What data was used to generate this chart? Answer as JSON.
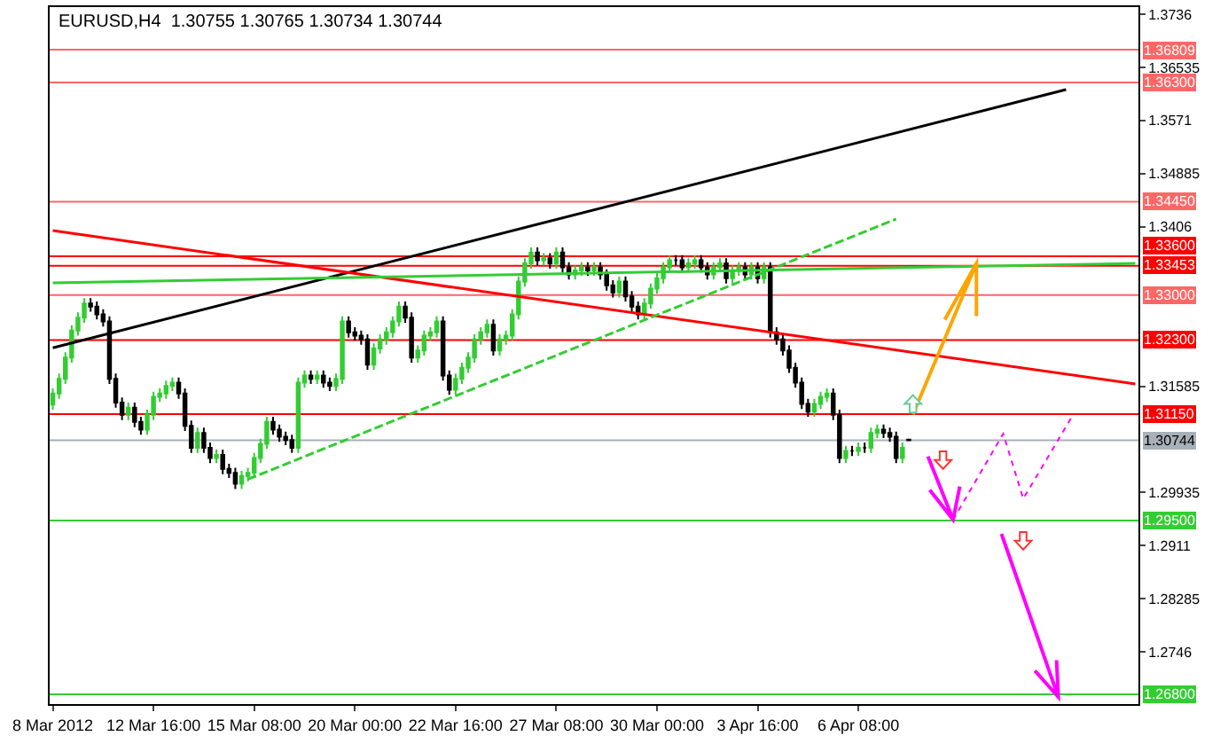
{
  "chart_data": {
    "type": "candlestick",
    "title": "EURUSD,H4  1.30755 1.30765 1.30734 1.30744",
    "categories": [
      "8 Mar 2012",
      null,
      null,
      null,
      null,
      null,
      null,
      null,
      null,
      null,
      null,
      null,
      null,
      null,
      null,
      null,
      "12 Mar 16:00",
      null,
      null,
      null,
      null,
      null,
      null,
      null,
      null,
      null,
      null,
      null,
      null,
      null,
      null,
      null,
      "15 Mar 08:00",
      null,
      null,
      null,
      null,
      null,
      null,
      null,
      null,
      null,
      null,
      null,
      null,
      null,
      null,
      null,
      "20 Mar 00:00",
      null,
      null,
      null,
      null,
      null,
      null,
      null,
      null,
      null,
      null,
      null,
      null,
      null,
      null,
      null,
      "22 Mar 16:00",
      null,
      null,
      null,
      null,
      null,
      null,
      null,
      null,
      null,
      null,
      null,
      null,
      null,
      null,
      null,
      "27 Mar 08:00",
      null,
      null,
      null,
      null,
      null,
      null,
      null,
      null,
      null,
      null,
      null,
      null,
      null,
      null,
      null,
      "30 Mar 00:00",
      null,
      null,
      null,
      null,
      null,
      null,
      null,
      null,
      null,
      null,
      null,
      null,
      null,
      null,
      null,
      "3 Apr 16:00",
      null,
      null,
      null,
      null,
      null,
      null,
      null,
      null,
      null,
      null,
      null,
      null,
      null,
      null,
      null,
      "6 Apr 08:00",
      null,
      null,
      null,
      null,
      null,
      null,
      null,
      null,
      null,
      null,
      null,
      null,
      null,
      null,
      null,
      null,
      null,
      null,
      null,
      null,
      null,
      null,
      null,
      null,
      null,
      null,
      null,
      null,
      null,
      null,
      null,
      null,
      null,
      null,
      null,
      null,
      null,
      null,
      null,
      null,
      null,
      null,
      null,
      null
    ],
    "ylim": [
      1.2665,
      1.3747
    ],
    "yticks": [
      1.3736,
      1.36535,
      1.3571,
      1.34885,
      1.3406,
      1.31585,
      1.29935,
      1.2911,
      1.28285,
      1.2746
    ],
    "ref_lines": [
      {
        "axis": "y",
        "value": 1.36809,
        "label": "1.36809",
        "color": "#ff6666"
      },
      {
        "axis": "y",
        "value": 1.363,
        "label": "1.36300",
        "color": "#ff6666"
      },
      {
        "axis": "y",
        "value": 1.3445,
        "label": "1.34450",
        "color": "#ff6666"
      },
      {
        "axis": "y",
        "value": 1.336,
        "label": "1.33600",
        "color": "#ff0000"
      },
      {
        "axis": "y",
        "value": 1.33453,
        "label": "1.33453",
        "color": "#ff0000"
      },
      {
        "axis": "y",
        "value": 1.33,
        "label": "1.33000",
        "color": "#ff6666"
      },
      {
        "axis": "y",
        "value": 1.323,
        "label": "1.32300",
        "color": "#ff0000"
      },
      {
        "axis": "y",
        "value": 1.3115,
        "label": "1.31150",
        "color": "#ff0000"
      },
      {
        "axis": "y",
        "value": 1.30744,
        "label": "1.30744",
        "color": "#a8b0b8"
      },
      {
        "axis": "y",
        "value": 1.295,
        "label": "1.29500",
        "color": "#32cd32"
      },
      {
        "axis": "y",
        "value": 1.268,
        "label": "1.26800",
        "color": "#32cd32"
      }
    ],
    "series": [
      {
        "ohlc": [
          [
            1.313,
            1.3155,
            1.3122,
            1.3147
          ],
          [
            1.3147,
            1.3178,
            1.3139,
            1.317
          ],
          [
            1.317,
            1.3211,
            1.3162,
            1.3203
          ],
          [
            1.3203,
            1.3253,
            1.3195,
            1.3245
          ],
          [
            1.3245,
            1.3273,
            1.3237,
            1.3265
          ],
          [
            1.3265,
            1.3295,
            1.3257,
            1.3287
          ],
          [
            1.3287,
            1.3295,
            1.3274,
            1.3282
          ],
          [
            1.3282,
            1.329,
            1.3262,
            1.327
          ],
          [
            1.327,
            1.3278,
            1.3251,
            1.3259
          ],
          [
            1.3259,
            1.3267,
            1.3162,
            1.317
          ],
          [
            1.317,
            1.3178,
            1.3125,
            1.3133
          ],
          [
            1.3133,
            1.3141,
            1.3106,
            1.3114
          ],
          [
            1.3114,
            1.3133,
            1.3106,
            1.3125
          ],
          [
            1.3125,
            1.3133,
            1.3095,
            1.3103
          ],
          [
            1.3103,
            1.3111,
            1.3083,
            1.3091
          ],
          [
            1.3091,
            1.3122,
            1.3083,
            1.3114
          ],
          [
            1.3114,
            1.315,
            1.3106,
            1.3142
          ],
          [
            1.3142,
            1.3155,
            1.3134,
            1.3147
          ],
          [
            1.3147,
            1.3167,
            1.3139,
            1.3159
          ],
          [
            1.3159,
            1.3172,
            1.3151,
            1.3164
          ],
          [
            1.3164,
            1.3172,
            1.3139,
            1.3147
          ],
          [
            1.3147,
            1.3155,
            1.3089,
            1.3097
          ],
          [
            1.3097,
            1.3105,
            1.3055,
            1.3063
          ],
          [
            1.3063,
            1.3094,
            1.3055,
            1.3086
          ],
          [
            1.3086,
            1.3094,
            1.3055,
            1.3063
          ],
          [
            1.3063,
            1.3071,
            1.3039,
            1.3047
          ],
          [
            1.3047,
            1.306,
            1.3039,
            1.3052
          ],
          [
            1.3052,
            1.306,
            1.3022,
            1.303
          ],
          [
            1.303,
            1.3038,
            1.3016,
            1.3024
          ],
          [
            1.3024,
            1.3032,
            1.2999,
            1.3007
          ],
          [
            1.3007,
            1.3027,
            1.2999,
            1.3019
          ],
          [
            1.3019,
            1.3032,
            1.3011,
            1.3024
          ],
          [
            1.3024,
            1.3055,
            1.3016,
            1.3047
          ],
          [
            1.3047,
            1.3077,
            1.3039,
            1.3069
          ],
          [
            1.3069,
            1.3111,
            1.3061,
            1.3103
          ],
          [
            1.3103,
            1.3111,
            1.3083,
            1.3091
          ],
          [
            1.3091,
            1.3099,
            1.3072,
            1.308
          ],
          [
            1.308,
            1.3088,
            1.3067,
            1.3075
          ],
          [
            1.3075,
            1.3083,
            1.3055,
            1.3063
          ],
          [
            1.3063,
            1.3172,
            1.3055,
            1.3164
          ],
          [
            1.3164,
            1.3183,
            1.3156,
            1.3175
          ],
          [
            1.3175,
            1.3183,
            1.3162,
            1.317
          ],
          [
            1.317,
            1.3183,
            1.3162,
            1.3175
          ],
          [
            1.3175,
            1.3183,
            1.3156,
            1.3164
          ],
          [
            1.3164,
            1.3172,
            1.3151,
            1.3159
          ],
          [
            1.3159,
            1.3178,
            1.3151,
            1.317
          ],
          [
            1.317,
            1.3267,
            1.3162,
            1.3259
          ],
          [
            1.3259,
            1.3267,
            1.3234,
            1.3242
          ],
          [
            1.3242,
            1.325,
            1.3229,
            1.3237
          ],
          [
            1.3237,
            1.3245,
            1.3223,
            1.3231
          ],
          [
            1.3231,
            1.3239,
            1.3184,
            1.3192
          ],
          [
            1.3192,
            1.3225,
            1.3184,
            1.3217
          ],
          [
            1.3217,
            1.3239,
            1.3209,
            1.3231
          ],
          [
            1.3231,
            1.325,
            1.3223,
            1.3242
          ],
          [
            1.3242,
            1.3267,
            1.3234,
            1.3259
          ],
          [
            1.3259,
            1.329,
            1.3251,
            1.3282
          ],
          [
            1.3282,
            1.329,
            1.3257,
            1.3265
          ],
          [
            1.3265,
            1.3273,
            1.3195,
            1.3203
          ],
          [
            1.3203,
            1.3222,
            1.3195,
            1.3214
          ],
          [
            1.3214,
            1.3245,
            1.3206,
            1.3237
          ],
          [
            1.3237,
            1.325,
            1.3229,
            1.3242
          ],
          [
            1.3242,
            1.3267,
            1.3234,
            1.3259
          ],
          [
            1.3259,
            1.3267,
            1.3167,
            1.3175
          ],
          [
            1.3175,
            1.3183,
            1.3145,
            1.3153
          ],
          [
            1.3153,
            1.3178,
            1.3145,
            1.317
          ],
          [
            1.317,
            1.3195,
            1.3162,
            1.3187
          ],
          [
            1.3187,
            1.3211,
            1.3179,
            1.3203
          ],
          [
            1.3203,
            1.3239,
            1.3195,
            1.3231
          ],
          [
            1.3231,
            1.325,
            1.3223,
            1.3242
          ],
          [
            1.3242,
            1.3262,
            1.3234,
            1.3254
          ],
          [
            1.3254,
            1.3262,
            1.3206,
            1.3214
          ],
          [
            1.3214,
            1.3239,
            1.3206,
            1.3231
          ],
          [
            1.3231,
            1.3245,
            1.3223,
            1.3237
          ],
          [
            1.3237,
            1.3278,
            1.3229,
            1.327
          ],
          [
            1.327,
            1.3329,
            1.3262,
            1.3321
          ],
          [
            1.3321,
            1.3357,
            1.3313,
            1.3349
          ],
          [
            1.3349,
            1.3374,
            1.3341,
            1.3366
          ],
          [
            1.3366,
            1.3374,
            1.3346,
            1.3354
          ],
          [
            1.3354,
            1.3365,
            1.3346,
            1.3357
          ],
          [
            1.3357,
            1.3365,
            1.3341,
            1.3349
          ],
          [
            1.3349,
            1.3374,
            1.3341,
            1.3366
          ],
          [
            1.3366,
            1.3374,
            1.3335,
            1.3343
          ],
          [
            1.3343,
            1.3351,
            1.3324,
            1.3332
          ],
          [
            1.3332,
            1.3346,
            1.3324,
            1.3338
          ],
          [
            1.3338,
            1.3351,
            1.333,
            1.3343
          ],
          [
            1.3343,
            1.3351,
            1.333,
            1.3338
          ],
          [
            1.3338,
            1.3351,
            1.333,
            1.3343
          ],
          [
            1.3343,
            1.3351,
            1.3324,
            1.3332
          ],
          [
            1.3332,
            1.334,
            1.3307,
            1.3315
          ],
          [
            1.3315,
            1.3323,
            1.3296,
            1.3304
          ],
          [
            1.3304,
            1.3329,
            1.3296,
            1.3321
          ],
          [
            1.3321,
            1.3329,
            1.329,
            1.3298
          ],
          [
            1.3298,
            1.3306,
            1.3274,
            1.3282
          ],
          [
            1.3282,
            1.329,
            1.3262,
            1.327
          ],
          [
            1.327,
            1.3295,
            1.3262,
            1.3287
          ],
          [
            1.3287,
            1.3318,
            1.3279,
            1.331
          ],
          [
            1.331,
            1.3334,
            1.3302,
            1.3326
          ],
          [
            1.3326,
            1.3351,
            1.3318,
            1.3343
          ],
          [
            1.3343,
            1.3362,
            1.3335,
            1.3354
          ],
          [
            1.3354,
            1.3362,
            1.3346,
            1.3354
          ],
          [
            1.3354,
            1.3362,
            1.3335,
            1.3343
          ],
          [
            1.3343,
            1.3357,
            1.3335,
            1.3349
          ],
          [
            1.3349,
            1.3362,
            1.3341,
            1.3354
          ],
          [
            1.3354,
            1.3362,
            1.3335,
            1.3343
          ],
          [
            1.3343,
            1.3351,
            1.3324,
            1.3332
          ],
          [
            1.3332,
            1.3351,
            1.3324,
            1.3343
          ],
          [
            1.3343,
            1.3357,
            1.3335,
            1.3349
          ],
          [
            1.3349,
            1.3357,
            1.3318,
            1.3326
          ],
          [
            1.3326,
            1.3346,
            1.3318,
            1.3338
          ],
          [
            1.3338,
            1.3351,
            1.333,
            1.3343
          ],
          [
            1.3343,
            1.3351,
            1.3324,
            1.3332
          ],
          [
            1.3332,
            1.3351,
            1.3324,
            1.3343
          ],
          [
            1.3343,
            1.3351,
            1.3318,
            1.3326
          ],
          [
            1.3326,
            1.3351,
            1.3318,
            1.3343
          ],
          [
            1.3343,
            1.3351,
            1.3234,
            1.3242
          ],
          [
            1.3242,
            1.325,
            1.3223,
            1.3231
          ],
          [
            1.3231,
            1.3239,
            1.3206,
            1.3214
          ],
          [
            1.3214,
            1.3222,
            1.3179,
            1.3187
          ],
          [
            1.3187,
            1.3195,
            1.3156,
            1.3164
          ],
          [
            1.3164,
            1.3172,
            1.3123,
            1.3131
          ],
          [
            1.3131,
            1.3139,
            1.3111,
            1.3119
          ],
          [
            1.3119,
            1.3139,
            1.3111,
            1.3131
          ],
          [
            1.3131,
            1.315,
            1.3123,
            1.3142
          ],
          [
            1.3142,
            1.3155,
            1.3134,
            1.3147
          ],
          [
            1.3147,
            1.3155,
            1.3106,
            1.3114
          ],
          [
            1.3114,
            1.3122,
            1.3039,
            1.3047
          ],
          [
            1.3047,
            1.3066,
            1.3039,
            1.3058
          ],
          [
            1.3058,
            1.3066,
            1.305,
            1.3058
          ],
          [
            1.3058,
            1.3071,
            1.305,
            1.3063
          ],
          [
            1.3063,
            1.3071,
            1.3055,
            1.3063
          ],
          [
            1.3063,
            1.3094,
            1.3055,
            1.3086
          ],
          [
            1.3086,
            1.3099,
            1.3078,
            1.3091
          ],
          [
            1.3091,
            1.3099,
            1.3078,
            1.3086
          ],
          [
            1.3086,
            1.3094,
            1.3072,
            1.308
          ],
          [
            1.308,
            1.3088,
            1.3039,
            1.3047
          ],
          [
            1.3047,
            1.3071,
            1.3039,
            1.3063
          ],
          [
            1.30755,
            1.30765,
            1.30734,
            1.30744
          ],
          null,
          null,
          null,
          null,
          null,
          null,
          null,
          null,
          null,
          null,
          null,
          null,
          null,
          null,
          null,
          null,
          null,
          null,
          null,
          null,
          null,
          null,
          null,
          null,
          null,
          null,
          null,
          null,
          null,
          null,
          null,
          null,
          null,
          null,
          null,
          null
        ],
        "colors": [
          "#32cd32",
          "#32cd32",
          "#32cd32",
          "#32cd32",
          "#32cd32",
          "#32cd32",
          "#000000",
          "#000000",
          "#000000",
          "#000000",
          "#000000",
          "#000000",
          "#32cd32",
          "#000000",
          "#000000",
          "#32cd32",
          "#32cd32",
          "#32cd32",
          "#32cd32",
          "#32cd32",
          "#000000",
          "#000000",
          "#000000",
          "#32cd32",
          "#000000",
          "#000000",
          "#32cd32",
          "#000000",
          "#000000",
          "#000000",
          "#32cd32",
          "#32cd32",
          "#32cd32",
          "#32cd32",
          "#32cd32",
          "#000000",
          "#000000",
          "#000000",
          "#000000",
          "#32cd32",
          "#32cd32",
          "#000000",
          "#32cd32",
          "#000000",
          "#000000",
          "#32cd32",
          "#32cd32",
          "#000000",
          "#000000",
          "#000000",
          "#000000",
          "#32cd32",
          "#32cd32",
          "#32cd32",
          "#32cd32",
          "#32cd32",
          "#000000",
          "#000000",
          "#32cd32",
          "#32cd32",
          "#32cd32",
          "#32cd32",
          "#000000",
          "#000000",
          "#32cd32",
          "#32cd32",
          "#32cd32",
          "#32cd32",
          "#32cd32",
          "#32cd32",
          "#000000",
          "#32cd32",
          "#32cd32",
          "#32cd32",
          "#32cd32",
          "#32cd32",
          "#32cd32",
          "#000000",
          "#32cd32",
          "#000000",
          "#32cd32",
          "#000000",
          "#000000",
          "#32cd32",
          "#32cd32",
          "#000000",
          "#32cd32",
          "#000000",
          "#000000",
          "#000000",
          "#32cd32",
          "#000000",
          "#000000",
          "#000000",
          "#32cd32",
          "#32cd32",
          "#32cd32",
          "#32cd32",
          "#32cd32",
          "#000000",
          "#000000",
          "#32cd32",
          "#32cd32",
          "#000000",
          "#000000",
          "#32cd32",
          "#32cd32",
          "#000000",
          "#32cd32",
          "#32cd32",
          "#000000",
          "#32cd32",
          "#000000",
          "#32cd32",
          "#000000",
          "#000000",
          "#000000",
          "#000000",
          "#000000",
          "#000000",
          "#000000",
          "#32cd32",
          "#32cd32",
          "#32cd32",
          "#000000",
          "#000000",
          "#32cd32",
          "#000000",
          "#32cd32",
          "#000000",
          "#32cd32",
          "#32cd32",
          "#000000",
          "#000000",
          "#000000",
          "#32cd32",
          "#000000",
          null,
          null,
          null,
          null,
          null,
          null,
          null,
          null,
          null,
          null,
          null,
          null,
          null,
          null,
          null,
          null,
          null,
          null,
          null,
          null,
          null,
          null,
          null,
          null,
          null,
          null,
          null,
          null,
          null,
          null,
          null,
          null,
          null,
          null,
          null,
          null
        ]
      },
      {
        "type": "line",
        "color": "#000000",
        "values": [
          1.3218,
          null,
          null,
          null,
          null,
          null,
          null,
          null,
          null,
          null,
          null,
          null,
          null,
          null,
          null,
          null,
          null,
          null,
          null,
          null,
          null,
          null,
          null,
          null,
          null,
          null,
          null,
          null,
          null,
          null,
          null,
          null,
          null,
          null,
          null,
          null,
          null,
          null,
          null,
          null,
          null,
          null,
          null,
          null,
          null,
          null,
          null,
          null,
          null,
          null,
          null,
          null,
          null,
          null,
          null,
          null,
          null,
          null,
          null,
          null,
          null,
          null,
          null,
          null,
          null,
          null,
          null,
          null,
          null,
          null,
          null,
          null,
          null,
          null,
          null,
          null,
          null,
          null,
          null,
          null,
          null,
          null,
          null,
          null,
          null,
          null,
          null,
          null,
          null,
          null,
          null,
          null,
          null,
          null,
          null,
          null,
          null,
          null,
          null,
          null,
          null,
          null,
          null,
          null,
          null,
          null,
          null,
          null,
          null,
          null,
          null,
          null,
          null,
          null,
          null,
          null,
          null,
          null,
          null,
          null,
          null,
          null,
          null,
          null,
          null,
          null,
          null,
          null,
          null,
          null,
          null,
          null,
          null,
          null,
          null,
          null,
          null,
          null,
          null,
          null,
          null,
          null,
          null,
          null,
          null,
          null,
          null,
          null,
          null,
          null,
          null,
          null,
          null,
          null,
          null,
          null,
          null,
          null,
          null,
          null,
          null,
          1.3619,
          null,
          null,
          null,
          null,
          null,
          null,
          null,
          null,
          null,
          null,
          null
        ]
      },
      {
        "type": "line",
        "color": "#ff0000",
        "values": [
          1.34,
          null,
          null,
          null,
          null,
          null,
          null,
          null,
          null,
          null,
          null,
          null,
          null,
          null,
          null,
          null,
          null,
          null,
          null,
          null,
          null,
          null,
          null,
          null,
          null,
          null,
          null,
          null,
          null,
          null,
          null,
          null,
          null,
          null,
          null,
          null,
          null,
          null,
          null,
          null,
          null,
          null,
          null,
          null,
          null,
          null,
          null,
          null,
          null,
          null,
          null,
          null,
          null,
          null,
          null,
          null,
          null,
          null,
          null,
          null,
          null,
          null,
          null,
          null,
          null,
          null,
          null,
          null,
          null,
          null,
          null,
          null,
          null,
          null,
          null,
          null,
          null,
          null,
          null,
          null,
          null,
          null,
          null,
          null,
          null,
          null,
          null,
          null,
          null,
          null,
          null,
          null,
          null,
          null,
          null,
          null,
          null,
          null,
          null,
          null,
          null,
          null,
          null,
          null,
          null,
          null,
          null,
          null,
          null,
          null,
          null,
          null,
          null,
          null,
          null,
          null,
          null,
          null,
          null,
          null,
          null,
          null,
          null,
          null,
          null,
          null,
          null,
          null,
          null,
          null,
          null,
          null,
          null,
          null,
          null,
          null,
          null,
          null,
          null,
          null,
          null,
          null,
          null,
          null,
          null,
          null,
          null,
          null,
          null,
          null,
          null,
          null,
          null,
          null,
          null,
          null,
          null,
          null,
          null,
          null,
          null,
          null,
          null,
          null,
          null,
          null,
          null,
          null,
          null,
          null,
          null,
          null,
          1.3162
        ]
      },
      {
        "type": "line",
        "color": "#32cd32",
        "line_style": "dashed",
        "values": [
          null,
          null,
          null,
          null,
          null,
          null,
          null,
          null,
          null,
          null,
          null,
          null,
          null,
          null,
          null,
          null,
          null,
          null,
          null,
          null,
          null,
          null,
          null,
          null,
          null,
          null,
          null,
          null,
          null,
          null,
          null,
          1.3014,
          null,
          null,
          null,
          null,
          null,
          null,
          null,
          null,
          null,
          null,
          null,
          null,
          null,
          null,
          null,
          null,
          null,
          null,
          null,
          null,
          null,
          null,
          null,
          null,
          null,
          null,
          null,
          null,
          null,
          null,
          null,
          null,
          null,
          null,
          null,
          null,
          null,
          null,
          null,
          null,
          null,
          null,
          null,
          null,
          null,
          null,
          null,
          null,
          null,
          null,
          null,
          null,
          null,
          null,
          null,
          null,
          null,
          null,
          null,
          null,
          null,
          null,
          null,
          null,
          null,
          null,
          null,
          null,
          null,
          null,
          null,
          null,
          null,
          null,
          null,
          null,
          null,
          null,
          null,
          null,
          null,
          null,
          null,
          null,
          null,
          null,
          null,
          null,
          null,
          null,
          null,
          null,
          null,
          null,
          null,
          null,
          null,
          null,
          null,
          null,
          null,
          null,
          1.3418,
          null,
          null,
          null,
          null,
          null,
          null,
          null,
          null,
          null,
          null,
          null,
          null,
          null,
          null,
          null,
          null,
          null,
          null,
          null,
          null,
          null,
          null,
          null,
          null,
          null,
          null,
          null,
          null,
          null,
          null,
          null,
          null,
          null,
          null,
          null,
          null,
          null,
          null
        ]
      },
      {
        "type": "line",
        "color": "#32cd32",
        "values": [
          1.3319,
          null,
          null,
          null,
          null,
          null,
          null,
          null,
          null,
          null,
          null,
          null,
          null,
          null,
          null,
          null,
          null,
          null,
          null,
          null,
          null,
          null,
          null,
          null,
          null,
          null,
          null,
          null,
          null,
          null,
          null,
          null,
          null,
          null,
          null,
          null,
          null,
          null,
          null,
          null,
          null,
          null,
          null,
          null,
          null,
          null,
          null,
          null,
          null,
          null,
          null,
          null,
          null,
          null,
          null,
          null,
          null,
          null,
          null,
          null,
          null,
          null,
          null,
          null,
          null,
          null,
          null,
          null,
          null,
          null,
          null,
          null,
          null,
          null,
          null,
          null,
          null,
          null,
          null,
          null,
          null,
          null,
          null,
          null,
          null,
          null,
          null,
          null,
          null,
          null,
          null,
          null,
          null,
          null,
          null,
          null,
          null,
          null,
          null,
          null,
          null,
          null,
          null,
          null,
          null,
          null,
          null,
          null,
          null,
          null,
          null,
          null,
          null,
          null,
          null,
          null,
          null,
          null,
          null,
          null,
          null,
          null,
          null,
          null,
          null,
          null,
          null,
          null,
          null,
          null,
          null,
          null,
          null,
          null,
          null,
          null,
          null,
          null,
          null,
          null,
          null,
          null,
          null,
          null,
          null,
          null,
          null,
          null,
          null,
          null,
          null,
          null,
          null,
          null,
          null,
          null,
          null,
          null,
          null,
          null,
          null,
          null,
          null,
          null,
          null,
          null,
          null,
          null,
          null,
          null,
          null,
          null,
          1.3349
        ]
      }
    ]
  }
}
